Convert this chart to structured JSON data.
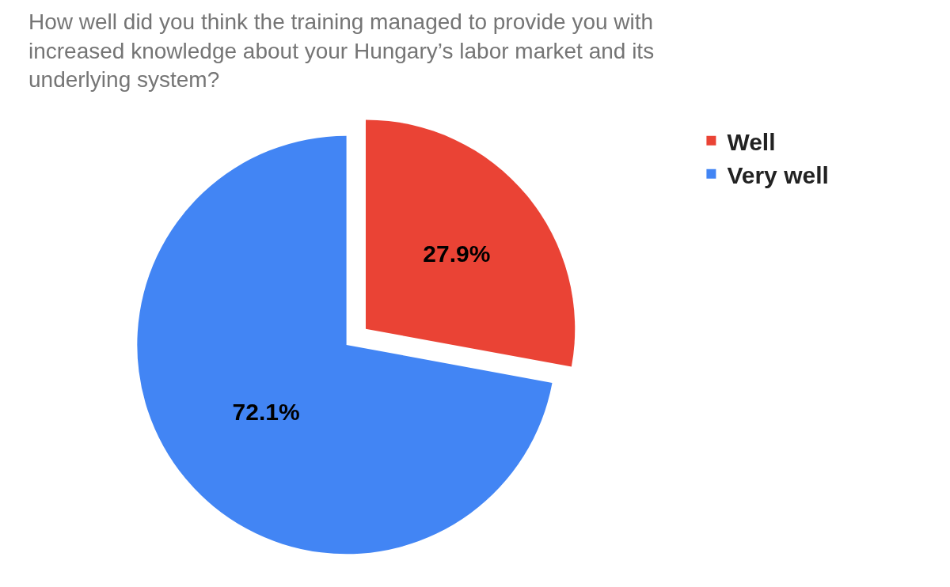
{
  "chart_data": {
    "type": "pie",
    "title": "How well did you think the training managed to provide you with increased knowledge about your Hungary’s labor market and its underlying system?",
    "categories": [
      "Well",
      "Very well"
    ],
    "values": [
      27.9,
      72.1
    ],
    "colors": [
      "#ea4335",
      "#4285f4"
    ],
    "value_labels": [
      "27.9%",
      "72.1%"
    ],
    "legend": "top right"
  }
}
